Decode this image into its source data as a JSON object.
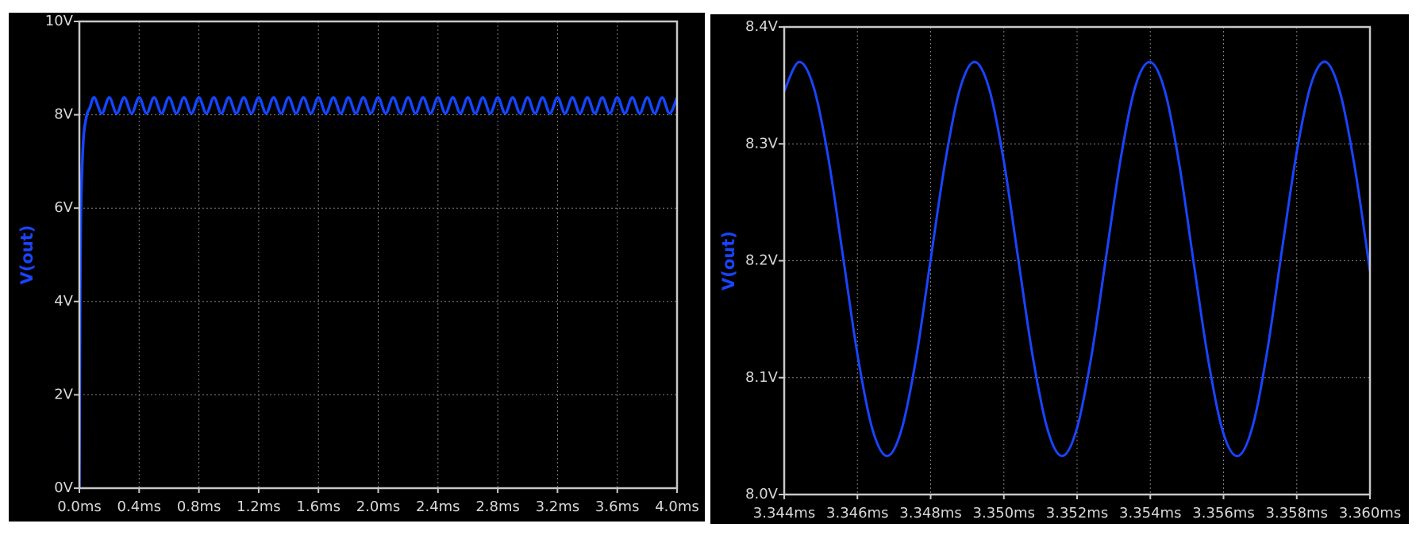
{
  "chart_data": [
    {
      "type": "line",
      "ylabel": "V(out)",
      "grid": true,
      "xlim": [
        0,
        4.0
      ],
      "xticks": [
        {
          "value": 0,
          "label": "0.0ms"
        },
        {
          "value": 0.4,
          "label": "0.4ms"
        },
        {
          "value": 0.8,
          "label": "0.8ms"
        },
        {
          "value": 1.2,
          "label": "1.2ms"
        },
        {
          "value": 1.6,
          "label": "1.6ms"
        },
        {
          "value": 2.0,
          "label": "2.0ms"
        },
        {
          "value": 2.4,
          "label": "2.4ms"
        },
        {
          "value": 2.8,
          "label": "2.8ms"
        },
        {
          "value": 3.2,
          "label": "3.2ms"
        },
        {
          "value": 3.6,
          "label": "3.6ms"
        },
        {
          "value": 4.0,
          "label": "4.0ms"
        }
      ],
      "ylim": [
        0,
        10
      ],
      "yticks": [
        {
          "value": 0,
          "label": "0V"
        },
        {
          "value": 2,
          "label": "2V"
        },
        {
          "value": 4,
          "label": "4V"
        },
        {
          "value": 6,
          "label": "6V"
        },
        {
          "value": 8,
          "label": "8V"
        },
        {
          "value": 10,
          "label": "10V"
        }
      ],
      "series": [
        {
          "color": "#1446ff",
          "x": [
            0,
            0.005,
            0.01,
            0.02,
            0.03,
            0.05,
            0.07,
            0.1,
            0.15,
            0.2,
            0.25,
            0.3,
            0.35,
            0.4,
            0.45,
            0.5,
            0.55,
            0.6,
            0.65,
            0.7,
            0.75,
            0.8,
            0.85,
            0.9,
            0.95,
            1.0,
            1.05,
            1.1,
            1.15,
            1.2,
            1.25,
            1.3,
            1.35,
            1.4,
            1.45,
            1.5,
            1.55,
            1.6,
            1.65,
            1.7,
            1.75,
            1.8,
            1.85,
            1.9,
            1.95,
            2.0,
            2.05,
            2.1,
            2.15,
            2.2,
            2.25,
            2.3,
            2.35,
            2.4,
            2.45,
            2.5,
            2.55,
            2.6,
            2.65,
            2.7,
            2.75,
            2.8,
            2.85,
            2.9,
            2.95,
            3.0,
            3.05,
            3.1,
            3.15,
            3.2,
            3.25,
            3.3,
            3.35,
            3.4,
            3.45,
            3.5,
            3.55,
            3.6,
            3.65,
            3.7,
            3.75,
            3.8,
            3.85,
            3.9,
            3.95,
            4.0
          ],
          "values": [
            0,
            4.0,
            5.9,
            7.0,
            7.6,
            8.0,
            8.15,
            8.37,
            8.03,
            8.37,
            8.03,
            8.37,
            8.03,
            8.37,
            8.03,
            8.37,
            8.03,
            8.37,
            8.03,
            8.37,
            8.03,
            8.37,
            8.03,
            8.37,
            8.03,
            8.37,
            8.03,
            8.37,
            8.03,
            8.37,
            8.03,
            8.37,
            8.03,
            8.37,
            8.03,
            8.37,
            8.03,
            8.37,
            8.03,
            8.37,
            8.03,
            8.37,
            8.03,
            8.37,
            8.03,
            8.37,
            8.03,
            8.37,
            8.03,
            8.37,
            8.03,
            8.37,
            8.03,
            8.37,
            8.03,
            8.37,
            8.03,
            8.37,
            8.03,
            8.37,
            8.03,
            8.37,
            8.03,
            8.37,
            8.03,
            8.37,
            8.03,
            8.37,
            8.03,
            8.37,
            8.03,
            8.37,
            8.03,
            8.37,
            8.03,
            8.37,
            8.03,
            8.37,
            8.03,
            8.37,
            8.03,
            8.37,
            8.03,
            8.37,
            8.03,
            8.37
          ]
        }
      ]
    },
    {
      "type": "line",
      "ylabel": "V(out)",
      "grid": true,
      "xlim": [
        3.344,
        3.36
      ],
      "xticks": [
        {
          "value": 3.344,
          "label": "3.344ms"
        },
        {
          "value": 3.346,
          "label": "3.346ms"
        },
        {
          "value": 3.348,
          "label": "3.348ms"
        },
        {
          "value": 3.35,
          "label": "3.350ms"
        },
        {
          "value": 3.352,
          "label": "3.352ms"
        },
        {
          "value": 3.354,
          "label": "3.354ms"
        },
        {
          "value": 3.356,
          "label": "3.356ms"
        },
        {
          "value": 3.358,
          "label": "3.358ms"
        },
        {
          "value": 3.36,
          "label": "3.360ms"
        }
      ],
      "ylim": [
        8.0,
        8.4
      ],
      "yticks": [
        {
          "value": 8.0,
          "label": "8.0V"
        },
        {
          "value": 8.1,
          "label": "8.1V"
        },
        {
          "value": 8.2,
          "label": "8.2V"
        },
        {
          "value": 8.3,
          "label": "8.3V"
        },
        {
          "value": 8.4,
          "label": "8.4V"
        }
      ],
      "series": [
        {
          "color": "#1a44ff",
          "x": [
            3.344,
            3.3444,
            3.3448,
            3.3452,
            3.3456,
            3.346,
            3.3464,
            3.3468,
            3.3472,
            3.3476,
            3.348,
            3.3484,
            3.3488,
            3.3492,
            3.3496,
            3.35,
            3.3504,
            3.3508,
            3.3512,
            3.3516,
            3.352,
            3.3524,
            3.3528,
            3.3532,
            3.3536,
            3.354,
            3.3544,
            3.3548,
            3.3552,
            3.3556,
            3.356,
            3.3564,
            3.3568,
            3.3572,
            3.3576,
            3.358,
            3.3584,
            3.3588,
            3.3592,
            3.3596,
            3.36
          ],
          "values": [
            8.345,
            8.37,
            8.349,
            8.289,
            8.205,
            8.12,
            8.057,
            8.033,
            8.055,
            8.116,
            8.201,
            8.285,
            8.347,
            8.37,
            8.347,
            8.285,
            8.2,
            8.116,
            8.055,
            8.033,
            8.057,
            8.12,
            8.205,
            8.289,
            8.35,
            8.37,
            8.345,
            8.281,
            8.195,
            8.112,
            8.052,
            8.033,
            8.059,
            8.124,
            8.21,
            8.293,
            8.352,
            8.37,
            8.342,
            8.277,
            8.191
          ]
        }
      ]
    }
  ]
}
